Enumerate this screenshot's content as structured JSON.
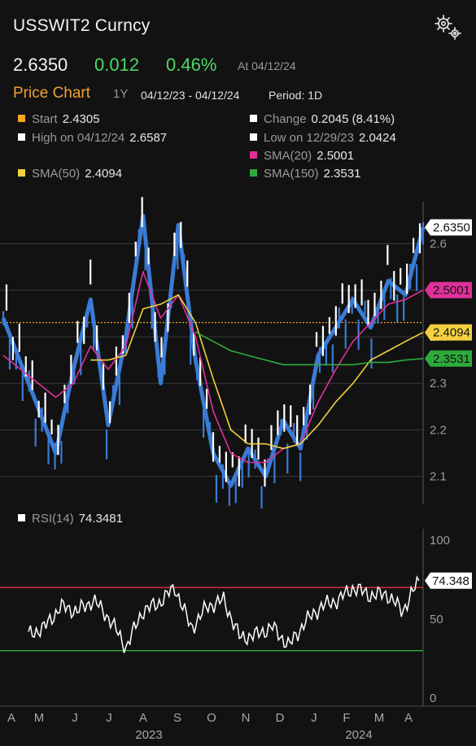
{
  "header": {
    "title": "USSWIT2 Curncy",
    "price": "2.6350",
    "change": "0.012",
    "change_pct": "0.46%",
    "as_of": "At 04/12/24"
  },
  "price_chart": {
    "title": "Price Chart",
    "range": "1Y",
    "dates": "04/12/23 - 04/12/24",
    "period": "Period: 1D"
  },
  "legend": [
    {
      "key": "start",
      "label": "Start",
      "value": "2.4305",
      "color": "#f5a623"
    },
    {
      "key": "change",
      "label": "Change",
      "value": "0.2045 (8.41%)",
      "color": "#ffffff"
    },
    {
      "key": "high",
      "label": "High on 04/12/24",
      "value": "2.6587",
      "color": "#ffffff"
    },
    {
      "key": "low",
      "label": "Low on 12/29/23",
      "value": "2.0424",
      "color": "#ffffff"
    },
    {
      "key": "sma20",
      "label": "SMA(20)",
      "value": "2.5001",
      "color": "#e0309a"
    },
    {
      "key": "sma50",
      "label": "SMA(50)",
      "value": "2.4094",
      "color": "#f4d03f"
    },
    {
      "key": "sma150",
      "label": "SMA(150)",
      "value": "2.3531",
      "color": "#2eaa3c"
    }
  ],
  "rsi_legend": {
    "label": "RSI(14)",
    "value": "74.3481"
  },
  "colors": {
    "price": "#3a7bd5",
    "candle_up": "#ffffff",
    "sma20": "#e0309a",
    "sma50": "#f4d03f",
    "sma150": "#2eaa3c",
    "start_line": "#f5a623",
    "rsi_line": "#ffffff",
    "rsi_over": "#d0303a",
    "rsi_under": "#2eaa3c"
  },
  "chart_data": [
    {
      "type": "line",
      "ylim": [
        2.04,
        2.69
      ],
      "y_ticks": [
        2.6,
        2.5,
        2.4,
        2.3,
        2.2,
        2.1
      ],
      "x_months": [
        "A",
        "M",
        "J",
        "J",
        "A",
        "S",
        "O",
        "N",
        "D",
        "J",
        "F",
        "M",
        "A"
      ],
      "x_years": [
        "2023",
        "2024"
      ],
      "start_level": 2.4305,
      "last_labels": [
        {
          "text": "2.6350",
          "series": "price"
        },
        {
          "text": "2.5001",
          "series": "sma20"
        },
        {
          "text": "2.4094",
          "series": "sma50"
        },
        {
          "text": "2.3531",
          "series": "sma150"
        }
      ],
      "x": [
        0,
        0.125,
        0.167,
        0.208,
        0.25,
        0.292,
        0.333,
        0.375,
        0.417,
        0.458,
        0.5,
        0.542,
        0.583,
        0.625,
        0.667,
        0.708,
        0.75,
        0.792,
        0.833,
        0.875,
        0.917,
        0.958,
        1
      ],
      "series": [
        {
          "name": "price",
          "values": [
            2.44,
            2.15,
            2.33,
            2.48,
            2.21,
            2.4,
            2.66,
            2.3,
            2.64,
            2.35,
            2.15,
            2.08,
            2.16,
            2.1,
            2.22,
            2.16,
            2.36,
            2.42,
            2.48,
            2.42,
            2.52,
            2.49,
            2.635
          ]
        },
        {
          "name": "sma20",
          "values": [
            2.36,
            2.27,
            2.3,
            2.38,
            2.33,
            2.38,
            2.54,
            2.44,
            2.49,
            2.4,
            2.24,
            2.15,
            2.13,
            2.13,
            2.16,
            2.17,
            2.26,
            2.33,
            2.39,
            2.43,
            2.47,
            2.48,
            2.5001
          ]
        },
        {
          "name": "sma50",
          "values": [
            null,
            null,
            null,
            2.35,
            2.35,
            2.36,
            2.46,
            2.47,
            2.49,
            2.43,
            2.31,
            2.2,
            2.17,
            2.17,
            2.16,
            2.17,
            2.21,
            2.26,
            2.3,
            2.35,
            2.37,
            2.39,
            2.4094
          ]
        },
        {
          "name": "sma150",
          "values": [
            null,
            null,
            null,
            null,
            null,
            null,
            null,
            null,
            null,
            2.41,
            2.39,
            2.37,
            2.36,
            2.35,
            2.34,
            2.34,
            2.34,
            2.34,
            2.34,
            2.345,
            2.345,
            2.35,
            2.3531
          ]
        }
      ]
    },
    {
      "type": "line",
      "title": "RSI(14)",
      "ylim": [
        0,
        100
      ],
      "y_ticks": [
        100,
        50,
        0
      ],
      "levels": [
        70,
        30
      ],
      "last_label": "74.348",
      "x": [
        0,
        0.042,
        0.083,
        0.125,
        0.167,
        0.208,
        0.25,
        0.292,
        0.333,
        0.375,
        0.417,
        0.458,
        0.5,
        0.542,
        0.583,
        0.625,
        0.667,
        0.708,
        0.75,
        0.792,
        0.833,
        0.875,
        0.917,
        0.958,
        1
      ],
      "values": [
        40,
        45,
        58,
        55,
        62,
        50,
        32,
        55,
        60,
        70,
        44,
        58,
        62,
        38,
        40,
        45,
        33,
        48,
        58,
        62,
        70,
        65,
        66,
        55,
        74.35
      ]
    }
  ]
}
